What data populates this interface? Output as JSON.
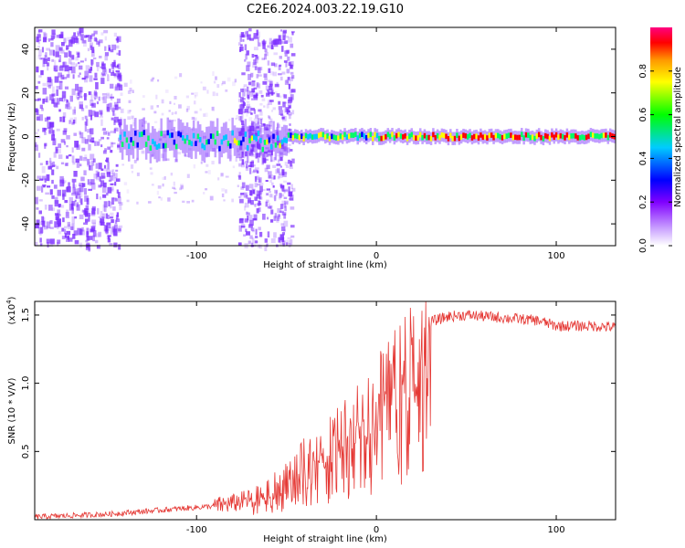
{
  "title": "C2E6.2024.003.22.19.G10",
  "colors": {
    "snr_line": "#e53935",
    "scatter_purple": "#7b2cff",
    "ridge_palette": [
      "#0000ff",
      "#00c8ff",
      "#00ff66",
      "#ffff00",
      "#ff0000"
    ]
  },
  "chart_data": [
    {
      "type": "heatmap",
      "xlabel": "Height of straight line (km)",
      "ylabel": "Frequency (Hz)",
      "xlim": [
        -190,
        133
      ],
      "ylim": [
        -50,
        50
      ],
      "xticks": [
        -100,
        0,
        100
      ],
      "yticks": [
        -40,
        -20,
        0,
        20,
        40
      ],
      "grid": false,
      "colorbar": {
        "label": "Normalized spectral amplitude",
        "range": [
          0.0,
          1.0
        ],
        "ticks": [
          "0.0",
          "0.2",
          "0.4",
          "0.6",
          "0.8"
        ],
        "colormap": [
          "#ffffff",
          "#8000ff",
          "#0000ff",
          "#00ffff",
          "#00ff00",
          "#ffff00",
          "#ff8000",
          "#ff0000",
          "#ff0080"
        ]
      },
      "features": {
        "noise_region": [
          -190,
          -143
        ],
        "main_line": {
          "x_start": -143,
          "x_end": 133,
          "freq": 0
        },
        "burst_region": [
          -77,
          -47
        ]
      }
    },
    {
      "type": "line",
      "xlabel": "Height of straight line (km)",
      "ylabel": "SNR (10 * V/V)",
      "scale_note": "(x10",
      "scale_exp": "4",
      "xlim": [
        -190,
        133
      ],
      "ylim": [
        0,
        1.6
      ],
      "xticks": [
        -100,
        0,
        100
      ],
      "yticks": [
        0.5,
        1.0,
        1.5
      ],
      "grid": false,
      "series": [
        {
          "points": [
            [
              -190,
              0.02
            ],
            [
              -150,
              0.04
            ],
            [
              -130,
              0.06
            ],
            [
              -110,
              0.08
            ],
            [
              -90,
              0.1
            ],
            [
              -80,
              0.12
            ],
            [
              -70,
              0.15
            ],
            [
              -60,
              0.22
            ],
            [
              -50,
              0.3
            ],
            [
              -40,
              0.45
            ],
            [
              -30,
              0.55
            ],
            [
              -20,
              0.65
            ],
            [
              -10,
              0.8
            ],
            [
              0,
              0.92
            ],
            [
              10,
              1.1
            ],
            [
              20,
              1.3
            ],
            [
              30,
              1.45
            ],
            [
              40,
              1.49
            ],
            [
              50,
              1.5
            ],
            [
              70,
              1.48
            ],
            [
              90,
              1.46
            ],
            [
              100,
              1.42
            ],
            [
              120,
              1.42
            ],
            [
              133,
              1.41
            ]
          ]
        }
      ]
    }
  ]
}
